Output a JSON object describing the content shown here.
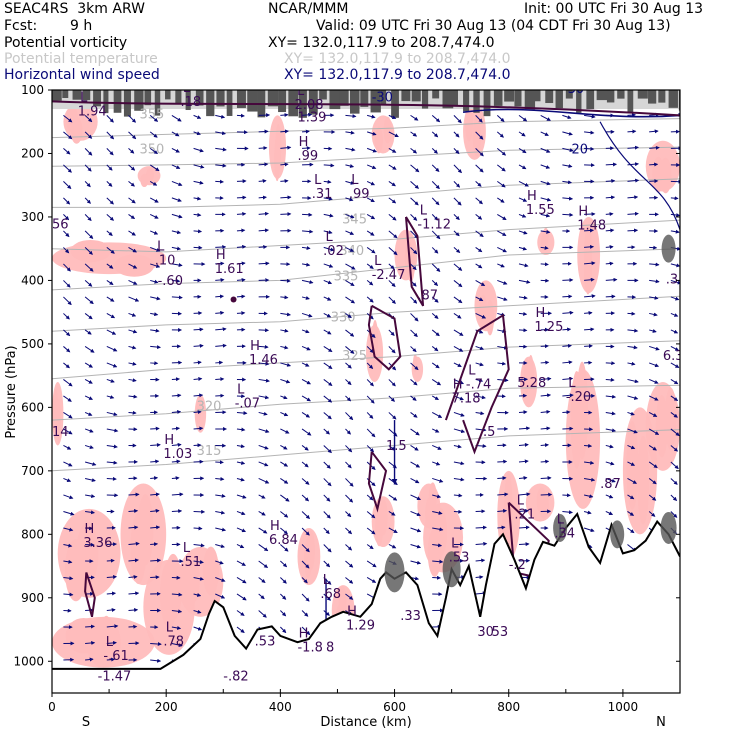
{
  "header": {
    "model": "SEAC4RS  3km ARW",
    "org": "NCAR/MMM",
    "init": "Init: 00 UTC Fri 30 Aug 13",
    "fcst_label": "Fcst:",
    "fcst_value": "9 h",
    "valid": "Valid: 09 UTC Fri 30 Aug 13 (04 CDT Fri 30 Aug 13)"
  },
  "fields": [
    {
      "name": "Potential vorticity",
      "xy": "XY= 132.0,117.9 to 208.7,474.0",
      "color": "#000000"
    },
    {
      "name": "Potential temperature",
      "xy": "XY= 132.0,117.9 to 208.7,474.0",
      "color": "#c8c8c8"
    },
    {
      "name": "Horizontal wind speed",
      "xy": "XY= 132.0,117.9 to 208.7,474.0",
      "color": "#0a0a78"
    }
  ],
  "colors": {
    "pv_fill": "#ffbcbc",
    "pv_contour": "#46083c",
    "theta": "#b4b4b4",
    "wind": "#0a0a78",
    "terrain": "#000000",
    "strat": "#555555"
  },
  "chart_data": {
    "type": "cross-section",
    "xlabel": "Distance (km)",
    "ylabel": "Pressure (hPa)",
    "xlim": [
      0,
      1100
    ],
    "ylim": [
      100,
      1050
    ],
    "x_ticks": [
      0,
      200,
      400,
      600,
      800,
      1000
    ],
    "y_ticks": [
      100,
      200,
      300,
      400,
      500,
      600,
      700,
      800,
      900,
      1000
    ],
    "left_end": "S",
    "right_end": "N",
    "theta_isentropes": [
      {
        "label": "315",
        "points": [
          [
            0,
            700
          ],
          [
            200,
            690
          ],
          [
            400,
            675
          ],
          [
            600,
            660
          ],
          [
            800,
            645
          ],
          [
            1100,
            635
          ]
        ],
        "label_at": [
          275,
          675
        ]
      },
      {
        "label": "320",
        "points": [
          [
            0,
            620
          ],
          [
            200,
            610
          ],
          [
            400,
            595
          ],
          [
            600,
            585
          ],
          [
            800,
            570
          ],
          [
            1100,
            565
          ]
        ],
        "label_at": [
          275,
          605
        ]
      },
      {
        "label": "325",
        "points": [
          [
            0,
            555
          ],
          [
            200,
            540
          ],
          [
            400,
            530
          ],
          [
            600,
            520
          ],
          [
            800,
            505
          ],
          [
            1100,
            495
          ]
        ],
        "label_at": [
          530,
          525
        ]
      },
      {
        "label": "330",
        "points": [
          [
            0,
            480
          ],
          [
            200,
            470
          ],
          [
            400,
            465
          ],
          [
            600,
            450
          ],
          [
            800,
            440
          ],
          [
            1100,
            425
          ]
        ],
        "label_at": [
          510,
          465
        ]
      },
      {
        "label": "335",
        "points": [
          [
            0,
            415
          ],
          [
            200,
            405
          ],
          [
            400,
            400
          ],
          [
            600,
            380
          ],
          [
            800,
            360
          ],
          [
            1100,
            350
          ]
        ],
        "label_at": [
          515,
          400
        ]
      },
      {
        "label": "340",
        "points": [
          [
            0,
            350
          ],
          [
            200,
            355
          ],
          [
            400,
            345
          ],
          [
            600,
            335
          ],
          [
            800,
            320
          ],
          [
            1100,
            305
          ]
        ],
        "label_at": [
          525,
          360
        ]
      },
      {
        "label": "345",
        "points": [
          [
            0,
            285
          ],
          [
            200,
            285
          ],
          [
            400,
            280
          ],
          [
            600,
            265
          ],
          [
            800,
            250
          ],
          [
            1100,
            240
          ]
        ],
        "label_at": [
          530,
          310
        ]
      },
      {
        "label": "350",
        "points": [
          [
            0,
            220
          ],
          [
            200,
            218
          ],
          [
            400,
            215
          ],
          [
            600,
            205
          ],
          [
            800,
            195
          ],
          [
            1100,
            190
          ]
        ],
        "label_at": [
          175,
          200
        ]
      },
      {
        "label": "355",
        "points": [
          [
            0,
            175
          ],
          [
            200,
            170
          ],
          [
            400,
            165
          ],
          [
            600,
            160
          ],
          [
            800,
            150
          ],
          [
            1100,
            145
          ]
        ],
        "label_at": [
          175,
          145
        ]
      }
    ],
    "terrain_profile": [
      [
        0,
        1012
      ],
      [
        190,
        1012
      ],
      [
        230,
        990
      ],
      [
        260,
        965
      ],
      [
        275,
        925
      ],
      [
        285,
        905
      ],
      [
        300,
        915
      ],
      [
        320,
        960
      ],
      [
        340,
        980
      ],
      [
        360,
        950
      ],
      [
        385,
        945
      ],
      [
        400,
        960
      ],
      [
        430,
        970
      ],
      [
        450,
        965
      ],
      [
        470,
        940
      ],
      [
        490,
        930
      ],
      [
        510,
        922
      ],
      [
        540,
        930
      ],
      [
        560,
        910
      ],
      [
        575,
        870
      ],
      [
        585,
        860
      ],
      [
        600,
        870
      ],
      [
        620,
        860
      ],
      [
        640,
        880
      ],
      [
        660,
        940
      ],
      [
        675,
        960
      ],
      [
        690,
        900
      ],
      [
        700,
        855
      ],
      [
        715,
        880
      ],
      [
        730,
        850
      ],
      [
        750,
        930
      ],
      [
        760,
        880
      ],
      [
        775,
        815
      ],
      [
        790,
        800
      ],
      [
        810,
        840
      ],
      [
        830,
        885
      ],
      [
        845,
        840
      ],
      [
        860,
        812
      ],
      [
        880,
        818
      ],
      [
        900,
        790
      ],
      [
        920,
        768
      ],
      [
        940,
        820
      ],
      [
        960,
        845
      ],
      [
        980,
        785
      ],
      [
        1000,
        830
      ],
      [
        1020,
        825
      ],
      [
        1040,
        810
      ],
      [
        1060,
        780
      ],
      [
        1080,
        800
      ],
      [
        1100,
        835
      ]
    ],
    "pv_labels": [
      {
        "kind": "L",
        "value": "1.94",
        "x": 45,
        "p": 140
      },
      {
        "kind": "L",
        "value": ".18",
        "x": 225,
        "p": 125
      },
      {
        "kind": "L",
        "value": "2.08",
        "x": 425,
        "p": 130
      },
      {
        "kind": "",
        "value": "1.39",
        "x": 430,
        "p": 150
      },
      {
        "kind": "H",
        "value": ".99",
        "x": 430,
        "p": 210
      },
      {
        "kind": "L",
        "value": ".31",
        "x": 455,
        "p": 270
      },
      {
        "kind": "L",
        "value": ".99",
        "x": 520,
        "p": 270
      },
      {
        "kind": "L",
        "value": "-1.12",
        "x": 640,
        "p": 318
      },
      {
        "kind": "H",
        "value": "1.55",
        "x": 830,
        "p": 295
      },
      {
        "kind": "H",
        "value": "1.48",
        "x": 920,
        "p": 320
      },
      {
        "kind": "",
        "value": "56",
        "x": 0,
        "p": 318
      },
      {
        "kind": "L",
        "value": ".10",
        "x": 180,
        "p": 375
      },
      {
        "kind": "",
        "value": "-.60",
        "x": 185,
        "p": 407
      },
      {
        "kind": "H",
        "value": "1.61",
        "x": 285,
        "p": 388
      },
      {
        "kind": "L",
        "value": ".02",
        "x": 475,
        "p": 360
      },
      {
        "kind": "L",
        "value": "-2.47",
        "x": 560,
        "p": 398
      },
      {
        "kind": "",
        "value": ".87",
        "x": 640,
        "p": 430
      },
      {
        "kind": "",
        "value": ".3",
        "x": 1075,
        "p": 405
      },
      {
        "kind": "H",
        "value": "1.25",
        "x": 845,
        "p": 480
      },
      {
        "kind": "H",
        "value": "1.46",
        "x": 345,
        "p": 532
      },
      {
        "kind": "",
        "value": "6.3",
        "x": 1070,
        "p": 525
      },
      {
        "kind": "L",
        "value": "-.74",
        "x": 725,
        "p": 570
      },
      {
        "kind": "",
        "value": "5.28",
        "x": 815,
        "p": 568
      },
      {
        "kind": "H",
        "value": "7.18",
        "x": 700,
        "p": 592
      },
      {
        "kind": "L",
        "value": "-.20",
        "x": 900,
        "p": 590
      },
      {
        "kind": "L",
        "value": "-.07",
        "x": 320,
        "p": 600
      },
      {
        "kind": "",
        "value": "14",
        "x": 0,
        "p": 645
      },
      {
        "kind": "",
        "value": ".5",
        "x": 755,
        "p": 645
      },
      {
        "kind": "",
        "value": "1.5",
        "x": 585,
        "p": 667
      },
      {
        "kind": "H",
        "value": "1.03",
        "x": 195,
        "p": 680
      },
      {
        "kind": "",
        "value": ".87",
        "x": 960,
        "p": 727
      },
      {
        "kind": "L",
        "value": ".21",
        "x": 810,
        "p": 775
      },
      {
        "kind": "H",
        "value": "6.84",
        "x": 380,
        "p": 815
      },
      {
        "kind": "L",
        "value": ".34",
        "x": 880,
        "p": 805
      },
      {
        "kind": "H",
        "value": "3.36",
        "x": 55,
        "p": 820
      },
      {
        "kind": "L",
        "value": ".51",
        "x": 225,
        "p": 850
      },
      {
        "kind": "L",
        "value": ".53",
        "x": 695,
        "p": 843
      },
      {
        "kind": "",
        "value": "-.2",
        "x": 800,
        "p": 855
      },
      {
        "kind": "L",
        "value": ".68",
        "x": 470,
        "p": 900
      },
      {
        "kind": "H",
        "value": "1.29",
        "x": 515,
        "p": 950
      },
      {
        "kind": "",
        "value": ".33",
        "x": 610,
        "p": 935
      },
      {
        "kind": "",
        "value": "30",
        "x": 745,
        "p": 960
      },
      {
        "kind": "",
        "value": "53",
        "x": 770,
        "p": 960
      },
      {
        "kind": "L",
        "value": ".78",
        "x": 195,
        "p": 975
      },
      {
        "kind": "",
        "value": ".53",
        "x": 355,
        "p": 975
      },
      {
        "kind": "H",
        "value": "-1.8",
        "x": 430,
        "p": 985
      },
      {
        "kind": "",
        "value": "8",
        "x": 480,
        "p": 985
      },
      {
        "kind": "L",
        "value": "-.61",
        "x": 90,
        "p": 998
      },
      {
        "kind": "",
        "value": "-1.47",
        "x": 80,
        "p": 1030
      },
      {
        "kind": "",
        "value": "-.82",
        "x": 300,
        "p": 1030
      }
    ],
    "wind_labels": [
      {
        "value": "20",
        "x": 910,
        "p": 200
      },
      {
        "value": "-30",
        "x": 895,
        "p": 105
      },
      {
        "value": "-30",
        "x": 560,
        "p": 118
      }
    ]
  }
}
